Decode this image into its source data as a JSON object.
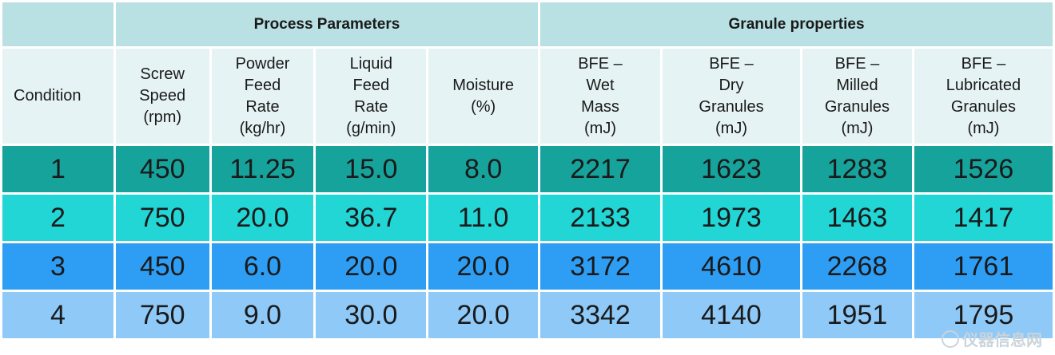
{
  "groups": {
    "process": "Process Parameters",
    "granule": "Granule properties"
  },
  "headers": [
    {
      "lines": [
        "Condition"
      ]
    },
    {
      "lines": [
        "Screw",
        "Speed",
        "(rpm)"
      ]
    },
    {
      "lines": [
        "Powder",
        "Feed",
        "Rate",
        "(kg/hr)"
      ]
    },
    {
      "lines": [
        "Liquid",
        "Feed",
        "Rate",
        "(g/min)"
      ]
    },
    {
      "lines": [
        "Moisture",
        "(%)"
      ]
    },
    {
      "lines": [
        "BFE –",
        "Wet",
        "Mass",
        "(mJ)"
      ]
    },
    {
      "lines": [
        "BFE –",
        "Dry",
        "Granules",
        "(mJ)"
      ]
    },
    {
      "lines": [
        "BFE –",
        "Milled",
        "Granules",
        "(mJ)"
      ]
    },
    {
      "lines": [
        "BFE –",
        "Lubricated",
        "Granules",
        "(mJ)"
      ]
    }
  ],
  "rows": [
    [
      "1",
      "450",
      "11.25",
      "15.0",
      "8.0",
      "2217",
      "1623",
      "1283",
      "1526"
    ],
    [
      "2",
      "750",
      "20.0",
      "36.7",
      "11.0",
      "2133",
      "1973",
      "1463",
      "1417"
    ],
    [
      "3",
      "450",
      "6.0",
      "20.0",
      "20.0",
      "3172",
      "4610",
      "2268",
      "1761"
    ],
    [
      "4",
      "750",
      "9.0",
      "30.0",
      "20.0",
      "3342",
      "4140",
      "1951",
      "1795"
    ]
  ],
  "colors": {
    "group_header": "#b9e0e3",
    "column_header": "#e6f3f5",
    "row1": "#16a39c",
    "row2": "#22d6d6",
    "row3": "#2e9ef5",
    "row4": "#8fc9f7"
  },
  "watermark": {
    "icon": "watermark-logo-icon",
    "text": "仪器信息网"
  }
}
